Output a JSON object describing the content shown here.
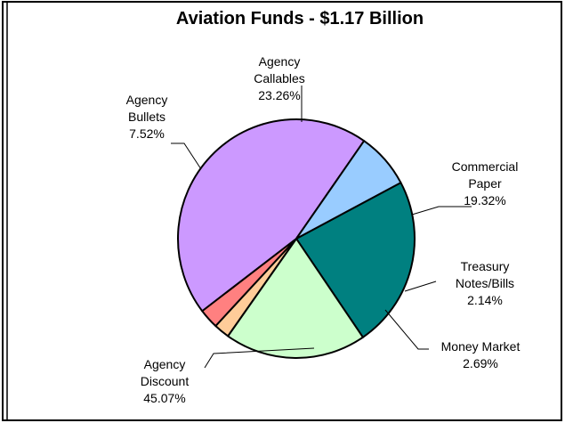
{
  "chart_data": {
    "type": "pie",
    "title": "Aviation Funds - $1.17 Billion",
    "slices": [
      {
        "label": [
          "Agency",
          "Callables"
        ],
        "value": 23.26,
        "value_label": "23.26%",
        "color": "#008080"
      },
      {
        "label": [
          "Commercial",
          "Paper"
        ],
        "value": 19.32,
        "value_label": "19.32%",
        "color": "#CCFFCC"
      },
      {
        "label": [
          "Treasury",
          "Notes/Bills"
        ],
        "value": 2.14,
        "value_label": "2.14%",
        "color": "#FFCC99"
      },
      {
        "label": [
          "Money Market"
        ],
        "value": 2.69,
        "value_label": "2.69%",
        "color": "#FF8080"
      },
      {
        "label": [
          "Agency",
          "Discount"
        ],
        "value": 45.07,
        "value_label": "45.07%",
        "color": "#CC99FF"
      },
      {
        "label": [
          "Agency",
          "Bullets"
        ],
        "value": 7.52,
        "value_label": "7.52%",
        "color": "#99CCFF"
      }
    ],
    "legend": "none"
  }
}
